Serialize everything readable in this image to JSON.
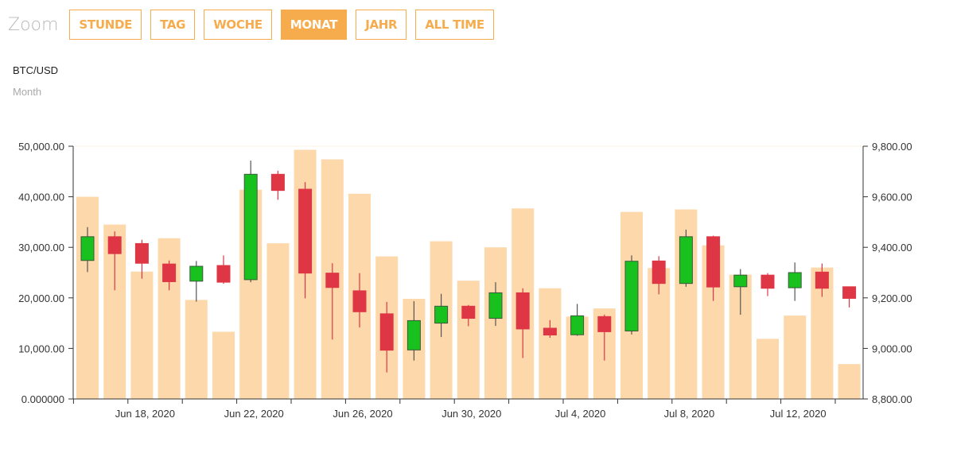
{
  "toolbar": {
    "zoom_label": "Zoom",
    "buttons": [
      "STUNDE",
      "TAG",
      "WOCHE",
      "MONAT",
      "JAHR",
      "ALL TIME"
    ],
    "active": "MONAT"
  },
  "header": {
    "pair": "BTC/USD",
    "period": "Month"
  },
  "colors": {
    "accent": "#f6ac4c",
    "up": "#18c11e",
    "down": "#de3645",
    "volume": "#fdd8ab",
    "wick_up": "#555555",
    "wick_down": "#de3645"
  },
  "chart_data": {
    "type": "candlestick",
    "left_axis": {
      "ylim": [
        0,
        50000
      ],
      "ticks": [
        "0.000000",
        "10,000.00",
        "20,000.00",
        "30,000.00",
        "40,000.00",
        "50,000.00"
      ]
    },
    "right_axis": {
      "ylim": [
        8800,
        9800
      ],
      "ticks": [
        "8,800.00",
        "9,000.00",
        "9,200.00",
        "9,400.00",
        "9,600.00",
        "9,800.00"
      ]
    },
    "x_ticks": [
      "Jun 18, 2020",
      "Jun 22, 2020",
      "Jun 26, 2020",
      "Jun 30, 2020",
      "Jul 4, 2020",
      "Jul 8, 2020",
      "Jul 12, 2020"
    ],
    "x_tick_index": [
      2,
      6,
      10,
      14,
      18,
      22,
      26
    ],
    "volume": [
      40000,
      34500,
      25200,
      31800,
      19600,
      13300,
      41400,
      30800,
      49300,
      47400,
      40600,
      28200,
      19800,
      31200,
      23400,
      30000,
      37700,
      21900,
      16300,
      17900,
      37000,
      25900,
      37500,
      30400,
      24600,
      11900,
      16500,
      26000,
      6900
    ],
    "candles": [
      {
        "open": 9348,
        "close": 9442,
        "high": 9480,
        "low": 9302
      },
      {
        "open": 9442,
        "close": 9375,
        "high": 9463,
        "low": 9230
      },
      {
        "open": 9415,
        "close": 9337,
        "high": 9430,
        "low": 9276
      },
      {
        "open": 9334,
        "close": 9264,
        "high": 9348,
        "low": 9230
      },
      {
        "open": 9266,
        "close": 9325,
        "high": 9346,
        "low": 9185
      },
      {
        "open": 9328,
        "close": 9262,
        "high": 9368,
        "low": 9256
      },
      {
        "open": 9272,
        "close": 9689,
        "high": 9743,
        "low": 9262
      },
      {
        "open": 9689,
        "close": 9625,
        "high": 9703,
        "low": 9588
      },
      {
        "open": 9630,
        "close": 9298,
        "high": 9658,
        "low": 9198
      },
      {
        "open": 9298,
        "close": 9241,
        "high": 9337,
        "low": 9035
      },
      {
        "open": 9228,
        "close": 9145,
        "high": 9298,
        "low": 9083
      },
      {
        "open": 9137,
        "close": 8993,
        "high": 9184,
        "low": 8905
      },
      {
        "open": 8994,
        "close": 9110,
        "high": 9187,
        "low": 8952
      },
      {
        "open": 9100,
        "close": 9167,
        "high": 9216,
        "low": 9045
      },
      {
        "open": 9167,
        "close": 9119,
        "high": 9172,
        "low": 9088
      },
      {
        "open": 9119,
        "close": 9220,
        "high": 9262,
        "low": 9089
      },
      {
        "open": 9220,
        "close": 9077,
        "high": 9238,
        "low": 8962
      },
      {
        "open": 9080,
        "close": 9053,
        "high": 9112,
        "low": 9042
      },
      {
        "open": 9054,
        "close": 9129,
        "high": 9176,
        "low": 9050
      },
      {
        "open": 9126,
        "close": 9066,
        "high": 9134,
        "low": 8952
      },
      {
        "open": 9069,
        "close": 9345,
        "high": 9368,
        "low": 9055
      },
      {
        "open": 9346,
        "close": 9257,
        "high": 9365,
        "low": 9214
      },
      {
        "open": 9257,
        "close": 9442,
        "high": 9470,
        "low": 9244
      },
      {
        "open": 9442,
        "close": 9243,
        "high": 9446,
        "low": 9188
      },
      {
        "open": 9244,
        "close": 9290,
        "high": 9314,
        "low": 9133
      },
      {
        "open": 9290,
        "close": 9238,
        "high": 9298,
        "low": 9207
      },
      {
        "open": 9240,
        "close": 9300,
        "high": 9340,
        "low": 9188
      },
      {
        "open": 9302,
        "close": 9238,
        "high": 9336,
        "low": 9204
      },
      {
        "open": 9244,
        "close": 9198,
        "high": 9245,
        "low": 9162
      }
    ]
  }
}
